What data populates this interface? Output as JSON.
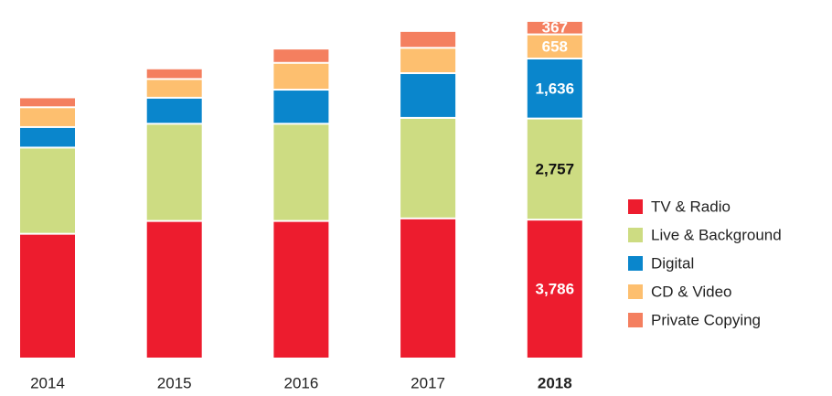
{
  "chart_data": {
    "type": "stacked_bar",
    "categories": [
      "2014",
      "2015",
      "2016",
      "2017",
      "2018"
    ],
    "ylim": [
      0,
      9600
    ],
    "legend": "right",
    "series": [
      {
        "name": "TV & Radio",
        "color": "#ed1c2e",
        "values": [
          3400,
          3750,
          3750,
          3820,
          3786
        ],
        "value_labels": [
          null,
          null,
          null,
          null,
          "3,786"
        ]
      },
      {
        "name": "Live & Background",
        "color": "#cddc82",
        "values": [
          2350,
          2650,
          2650,
          2740,
          2757
        ],
        "value_labels": [
          null,
          null,
          null,
          null,
          "2,757"
        ]
      },
      {
        "name": "Digital",
        "color": "#0a86cc",
        "values": [
          560,
          710,
          930,
          1220,
          1636
        ],
        "value_labels": [
          null,
          null,
          null,
          null,
          "1,636"
        ]
      },
      {
        "name": "CD & Video",
        "color": "#fdbf6f",
        "values": [
          540,
          510,
          730,
          690,
          658
        ],
        "value_labels": [
          null,
          null,
          null,
          null,
          "658"
        ]
      },
      {
        "name": "Private Copying",
        "color": "#f47f5f",
        "values": [
          270,
          290,
          390,
          460,
          367
        ],
        "value_labels": [
          null,
          null,
          null,
          null,
          "367"
        ]
      }
    ]
  }
}
